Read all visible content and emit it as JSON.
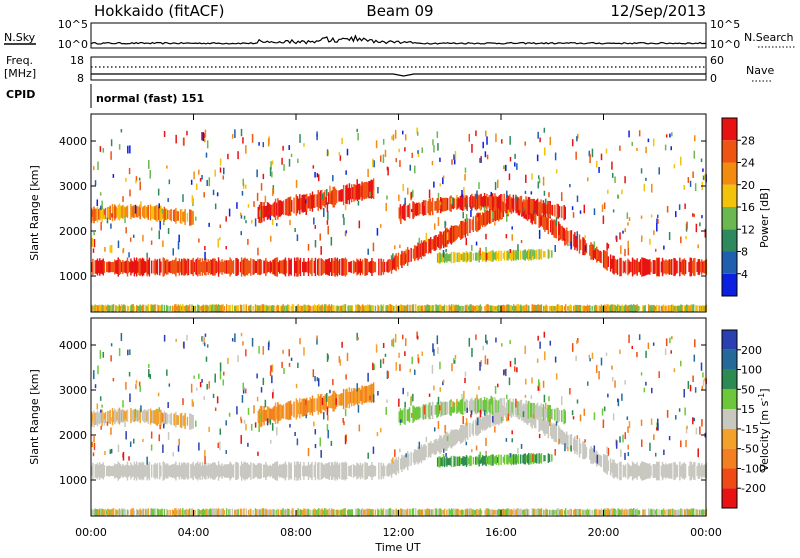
{
  "header": {
    "station": "Hokkaido (fitACF)",
    "beam": "Beam 09",
    "date": "12/Sep/2013"
  },
  "noise_panel": {
    "left_label": "N.Sky",
    "right_label": "N.Search",
    "scale_top": "10^5",
    "scale_bottom": "10^0"
  },
  "freq_panel": {
    "left_label_1": "Freq.",
    "left_label_2": "[MHz]",
    "left_top": "18",
    "left_bottom": "8",
    "right_label": "Nave",
    "right_top": "60",
    "right_bottom": "0"
  },
  "cpid": {
    "label": "CPID",
    "value": "normal (fast) 151"
  },
  "chart_data": [
    {
      "type": "heatmap",
      "name": "power",
      "ylabel": "Slant Range [km]",
      "ylim": [
        200,
        4600
      ],
      "yticks": [
        1000,
        2000,
        3000,
        4000
      ],
      "xlim": [
        0,
        24
      ],
      "colorbar": {
        "label": "Power [dB]",
        "ticks": [
          "4",
          "8",
          "12",
          "16",
          "20",
          "24",
          "28"
        ],
        "colors": [
          "#0b20e0",
          "#1e5fb0",
          "#2e8a5e",
          "#6cb850",
          "#f3c20a",
          "#f38b10",
          "#ee5512",
          "#e81212"
        ]
      }
    },
    {
      "type": "heatmap",
      "name": "velocity",
      "ylabel": "Slant Range [km]",
      "ylim": [
        200,
        4600
      ],
      "yticks": [
        1000,
        2000,
        3000,
        4000
      ],
      "xlim": [
        0,
        24
      ],
      "xlabel": "Time UT",
      "xticks": [
        "00:00",
        "04:00",
        "08:00",
        "12:00",
        "16:00",
        "20:00",
        "00:00"
      ],
      "colorbar": {
        "label": "Velocity [m s^-1]",
        "ticks": [
          "200",
          "100",
          "50",
          "15",
          "-15",
          "-50",
          "-100",
          "-200"
        ],
        "colors": [
          "#2a3fb0",
          "#236a9a",
          "#2c8a52",
          "#6cc83a",
          "#c8c8c0",
          "#f3a12a",
          "#f38020",
          "#ee4c14",
          "#e81212"
        ]
      }
    }
  ]
}
